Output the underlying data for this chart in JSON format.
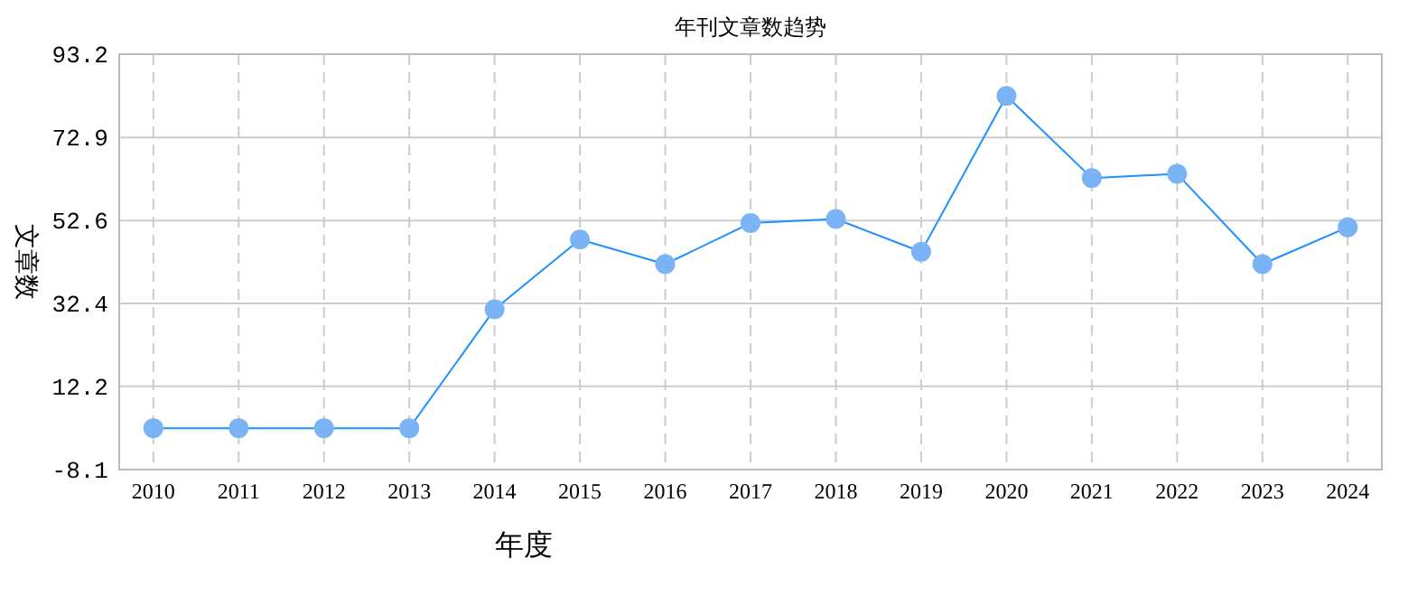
{
  "chart_data": {
    "type": "line",
    "title": "年刊文章数趋势",
    "xlabel": "年度",
    "ylabel": "文章数",
    "categories": [
      "2010",
      "2011",
      "2012",
      "2013",
      "2014",
      "2015",
      "2016",
      "2017",
      "2018",
      "2019",
      "2020",
      "2021",
      "2022",
      "2023",
      "2024"
    ],
    "series": [
      {
        "color": "#1e90ff",
        "values": [
          2,
          2,
          2,
          2,
          31,
          48,
          42,
          52,
          53,
          45,
          83,
          63,
          64,
          42,
          51
        ]
      }
    ],
    "ylim": [
      -8.1,
      93.2
    ],
    "yticks": [
      -8.1,
      12.2,
      32.4,
      52.6,
      72.9,
      93.2
    ],
    "grid": true,
    "marker": "circle",
    "line_style": "solid"
  }
}
